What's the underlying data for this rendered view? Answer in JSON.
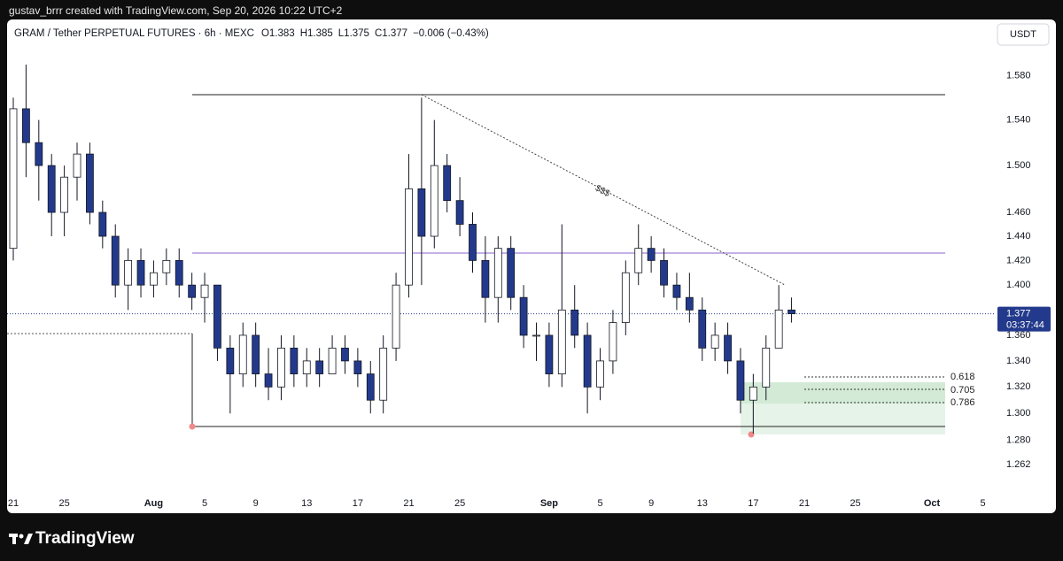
{
  "header": {
    "text": "gustav_brrr created with TradingView.com, Sep 20, 2026 10:22 UTC+2"
  },
  "chart_data": {
    "type": "candlestick",
    "title": "GRAM / Tether PERPETUAL FUTURES · 6h · MEXC",
    "ohlc_legend": [
      "O1.383",
      "H1.385",
      "L1.375",
      "C1.377",
      "−0.006 (−0.43%)"
    ],
    "currency": "USDT",
    "last_price": 1.377,
    "countdown": "03:37:44",
    "up_color": "#ffffff",
    "down_color": "#233a8c",
    "log_scale": true,
    "x": [
      "2026-07-21",
      "2026-07-22",
      "2026-07-23",
      "2026-07-24",
      "2026-07-25",
      "2026-07-26",
      "2026-07-27",
      "2026-07-28",
      "2026-07-29",
      "2026-07-30",
      "2026-07-31",
      "2026-08-01",
      "2026-08-02",
      "2026-08-03",
      "2026-08-04",
      "2026-08-05",
      "2026-08-06",
      "2026-08-07",
      "2026-08-08",
      "2026-08-09",
      "2026-08-10",
      "2026-08-11",
      "2026-08-12",
      "2026-08-13",
      "2026-08-14",
      "2026-08-15",
      "2026-08-16",
      "2026-08-17",
      "2026-08-18",
      "2026-08-19",
      "2026-08-20",
      "2026-08-21",
      "2026-08-22",
      "2026-08-23",
      "2026-08-24",
      "2026-08-25",
      "2026-08-26",
      "2026-08-27",
      "2026-08-28",
      "2026-08-29",
      "2026-08-30",
      "2026-08-31",
      "2026-09-01",
      "2026-09-02",
      "2026-09-03",
      "2026-09-04",
      "2026-09-05",
      "2026-09-06",
      "2026-09-07",
      "2026-09-08",
      "2026-09-09",
      "2026-09-10",
      "2026-09-11",
      "2026-09-12",
      "2026-09-13",
      "2026-09-14",
      "2026-09-15",
      "2026-09-16",
      "2026-09-17",
      "2026-09-18",
      "2026-09-19",
      "2026-09-20"
    ],
    "open": [
      1.43,
      1.55,
      1.52,
      1.5,
      1.46,
      1.49,
      1.51,
      1.46,
      1.44,
      1.4,
      1.42,
      1.4,
      1.41,
      1.42,
      1.4,
      1.39,
      1.4,
      1.35,
      1.33,
      1.36,
      1.33,
      1.32,
      1.35,
      1.33,
      1.34,
      1.33,
      1.35,
      1.34,
      1.33,
      1.31,
      1.35,
      1.4,
      1.48,
      1.44,
      1.5,
      1.47,
      1.45,
      1.42,
      1.39,
      1.43,
      1.39,
      1.36,
      1.36,
      1.33,
      1.38,
      1.36,
      1.32,
      1.34,
      1.37,
      1.41,
      1.43,
      1.42,
      1.4,
      1.39,
      1.38,
      1.35,
      1.36,
      1.34,
      1.31,
      1.32,
      1.35,
      1.38
    ],
    "high": [
      1.56,
      1.59,
      1.54,
      1.51,
      1.5,
      1.52,
      1.52,
      1.47,
      1.45,
      1.43,
      1.43,
      1.42,
      1.43,
      1.43,
      1.41,
      1.41,
      1.4,
      1.36,
      1.37,
      1.37,
      1.35,
      1.36,
      1.36,
      1.35,
      1.35,
      1.36,
      1.36,
      1.35,
      1.34,
      1.36,
      1.41,
      1.51,
      1.56,
      1.54,
      1.51,
      1.49,
      1.46,
      1.44,
      1.44,
      1.44,
      1.4,
      1.37,
      1.37,
      1.45,
      1.4,
      1.37,
      1.35,
      1.38,
      1.42,
      1.45,
      1.44,
      1.43,
      1.41,
      1.41,
      1.39,
      1.37,
      1.37,
      1.35,
      1.33,
      1.36,
      1.4,
      1.39
    ],
    "low": [
      1.42,
      1.49,
      1.47,
      1.44,
      1.44,
      1.47,
      1.45,
      1.43,
      1.39,
      1.38,
      1.39,
      1.39,
      1.4,
      1.39,
      1.38,
      1.37,
      1.34,
      1.3,
      1.32,
      1.32,
      1.31,
      1.31,
      1.32,
      1.32,
      1.32,
      1.33,
      1.33,
      1.32,
      1.3,
      1.3,
      1.34,
      1.39,
      1.4,
      1.43,
      1.46,
      1.44,
      1.41,
      1.37,
      1.37,
      1.38,
      1.35,
      1.34,
      1.32,
      1.32,
      1.35,
      1.3,
      1.31,
      1.33,
      1.36,
      1.4,
      1.41,
      1.39,
      1.38,
      1.37,
      1.34,
      1.34,
      1.33,
      1.3,
      1.285,
      1.31,
      1.35,
      1.37
    ],
    "close": [
      1.55,
      1.52,
      1.5,
      1.46,
      1.49,
      1.51,
      1.46,
      1.44,
      1.4,
      1.42,
      1.4,
      1.41,
      1.42,
      1.4,
      1.39,
      1.4,
      1.35,
      1.33,
      1.36,
      1.33,
      1.32,
      1.35,
      1.33,
      1.34,
      1.33,
      1.35,
      1.34,
      1.33,
      1.31,
      1.35,
      1.4,
      1.48,
      1.44,
      1.5,
      1.47,
      1.45,
      1.42,
      1.39,
      1.43,
      1.39,
      1.36,
      1.36,
      1.33,
      1.38,
      1.36,
      1.32,
      1.34,
      1.37,
      1.41,
      1.43,
      1.42,
      1.4,
      1.39,
      1.38,
      1.35,
      1.36,
      1.34,
      1.31,
      1.32,
      1.35,
      1.38,
      1.377
    ],
    "xlim": [
      "2026-07-20",
      "2026-10-06"
    ],
    "xticks": [
      {
        "value": "2026-07-21",
        "label": "21"
      },
      {
        "value": "2026-07-25",
        "label": "25"
      },
      {
        "value": "2026-08-01",
        "label": "Aug"
      },
      {
        "value": "2026-08-05",
        "label": "5"
      },
      {
        "value": "2026-08-09",
        "label": "9"
      },
      {
        "value": "2026-08-13",
        "label": "13"
      },
      {
        "value": "2026-08-17",
        "label": "17"
      },
      {
        "value": "2026-08-21",
        "label": "21"
      },
      {
        "value": "2026-08-25",
        "label": "25"
      },
      {
        "value": "2026-09-01",
        "label": "Sep"
      },
      {
        "value": "2026-09-05",
        "label": "5"
      },
      {
        "value": "2026-09-09",
        "label": "9"
      },
      {
        "value": "2026-09-13",
        "label": "13"
      },
      {
        "value": "2026-09-17",
        "label": "17"
      },
      {
        "value": "2026-09-21",
        "label": "21"
      },
      {
        "value": "2026-09-25",
        "label": "25"
      },
      {
        "value": "2026-10-01",
        "label": "Oct"
      },
      {
        "value": "2026-10-05",
        "label": "5"
      }
    ],
    "ylim": [
      1.243,
      1.632
    ],
    "yticks": [
      {
        "value": 1.58,
        "label": "1.580"
      },
      {
        "value": 1.54,
        "label": "1.540"
      },
      {
        "value": 1.5,
        "label": "1.500"
      },
      {
        "value": 1.46,
        "label": "1.460"
      },
      {
        "value": 1.44,
        "label": "1.440"
      },
      {
        "value": 1.42,
        "label": "1.420"
      },
      {
        "value": 1.4,
        "label": "1.400"
      },
      {
        "value": 1.36,
        "label": "1.360"
      },
      {
        "value": 1.34,
        "label": "1.340"
      },
      {
        "value": 1.32,
        "label": "1.320"
      },
      {
        "value": 1.3,
        "label": "1.300"
      },
      {
        "value": 1.28,
        "label": "1.280"
      },
      {
        "value": 1.262,
        "label": "1.262"
      }
    ],
    "annotations": {
      "trend_label": "$$$",
      "fib_levels": [
        0.618,
        0.705,
        0.786
      ]
    }
  },
  "footer": {
    "brand": "TradingView"
  }
}
